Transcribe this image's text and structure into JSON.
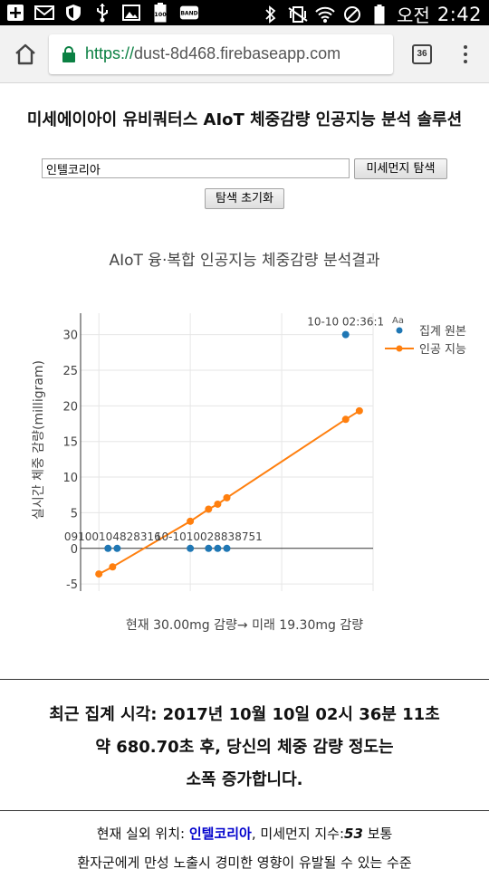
{
  "status_bar": {
    "left_icons": [
      "add-box-icon",
      "mail-icon",
      "shield-icon",
      "usb-icon",
      "image-icon",
      "battery-100-icon",
      "band-icon"
    ],
    "battery_badge": "100",
    "band_badge": "BAND",
    "right_icons": [
      "bluetooth-icon",
      "vibrate-icon",
      "wifi-icon",
      "no-sim-icon",
      "battery-icon"
    ],
    "ampm": "오전",
    "time": "2:42"
  },
  "browser": {
    "url_scheme": "https://",
    "url_host": "dust-8d468.firebaseapp.com",
    "tab_count": "36"
  },
  "page": {
    "title": "미세에이아이 유비쿼터스 AIoT 체중감량 인공지능 분석 솔루션",
    "search": {
      "value": "인텔코리아"
    },
    "search_button": "미세먼지 탐색",
    "reset_button": "탐색 초기화"
  },
  "chart_data": {
    "type": "scatter",
    "title": "AIoT 융·복합 인공지능 체중감량 분석결과",
    "ylabel": "실시간 체중 감량(milligram)",
    "xlabel": "",
    "ylim": [
      -6,
      33
    ],
    "yticks": [
      -5,
      0,
      5,
      10,
      15,
      20,
      25,
      30
    ],
    "grid": true,
    "legend_position": "top-right",
    "legend_icon_label": "Aa",
    "series": [
      {
        "name": "집계 원본",
        "mode": "markers",
        "color": "#1f77b4",
        "x": [
          1.0,
          2.0,
          10.0,
          12.0,
          13.0,
          14.0,
          27.0
        ],
        "y": [
          0,
          0,
          0,
          0,
          0,
          0,
          30
        ]
      },
      {
        "name": "인공 지능",
        "mode": "lines+markers",
        "color": "#ff7f0e",
        "x": [
          0.0,
          1.5,
          10.0,
          12.0,
          13.0,
          14.0,
          27.0,
          28.5
        ],
        "y": [
          -3.6,
          -2.6,
          3.8,
          5.5,
          6.2,
          7.1,
          18.1,
          19.3
        ]
      }
    ],
    "annotations": [
      {
        "text": "10-10 02:36:1",
        "x": 27.0,
        "y": 30
      },
      {
        "text": "09100104828316",
        "x": 1.5,
        "y": 0
      },
      {
        "text": "10-1010028838751",
        "x": 12.0,
        "y": 0
      }
    ]
  },
  "chart_footer": "현재 30.00mg 감량→ 미래 19.30mg 감량",
  "summary": {
    "line1": "최근 집계 시각: 2017년 10월 10일 02시 36분 11초",
    "line2": "약 680.70초 후, 당신의 체중 감량 정도는",
    "line3": "소폭 증가합니다."
  },
  "location": {
    "prefix": "현재 실외 위치: ",
    "place": "인텔코리아",
    "middle": ", 미세먼지 지수:",
    "index": "53",
    "suffix": " 보통"
  },
  "warning": "환자군에게 만성 노출시 경미한 영향이 유발될 수 있는 수준"
}
